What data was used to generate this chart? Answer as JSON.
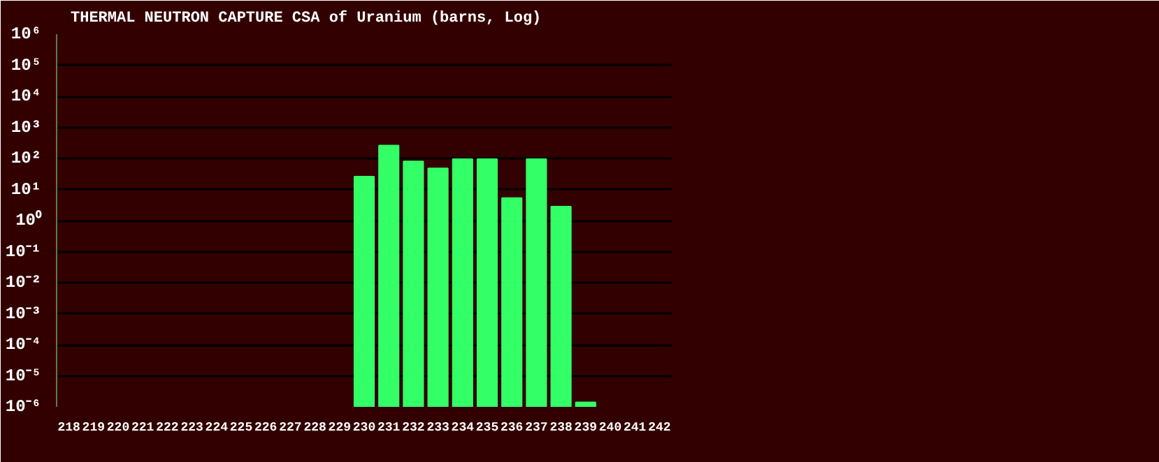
{
  "chart_data": {
    "type": "bar",
    "title": "THERMAL NEUTRON CAPTURE CSA of Uranium (barns, Log)",
    "categories": [
      "218",
      "219",
      "220",
      "221",
      "222",
      "223",
      "224",
      "225",
      "226",
      "227",
      "228",
      "229",
      "230",
      "231",
      "232",
      "233",
      "234",
      "235",
      "236",
      "237",
      "238",
      "239",
      "240",
      "241",
      "242"
    ],
    "series": [
      {
        "color": "#33ff66",
        "values": [
          null,
          null,
          null,
          null,
          null,
          null,
          null,
          null,
          null,
          null,
          null,
          null,
          26,
          260,
          80,
          48,
          95,
          95,
          5.3,
          95,
          2.8,
          1.4e-06,
          null,
          null,
          null
        ]
      }
    ],
    "log": true,
    "ylim": [
      1e-06,
      1000000.0
    ],
    "yticks": [
      {
        "value": 1e-06,
        "label": "10⁻⁶"
      },
      {
        "value": 1e-05,
        "label": "10⁻⁵"
      },
      {
        "value": 0.0001,
        "label": "10⁻⁴"
      },
      {
        "value": 0.001,
        "label": "10⁻³"
      },
      {
        "value": 0.01,
        "label": "10⁻²"
      },
      {
        "value": 0.1,
        "label": "10⁻¹"
      },
      {
        "value": 1,
        "label": "10⁰"
      },
      {
        "value": 10,
        "label": "10¹"
      },
      {
        "value": 100,
        "label": "10²"
      },
      {
        "value": 1000,
        "label": "10³"
      },
      {
        "value": 10000,
        "label": "10⁴"
      },
      {
        "value": 100000,
        "label": "10⁵"
      },
      {
        "value": 1000000,
        "label": "10⁶"
      }
    ],
    "grid": "y"
  }
}
